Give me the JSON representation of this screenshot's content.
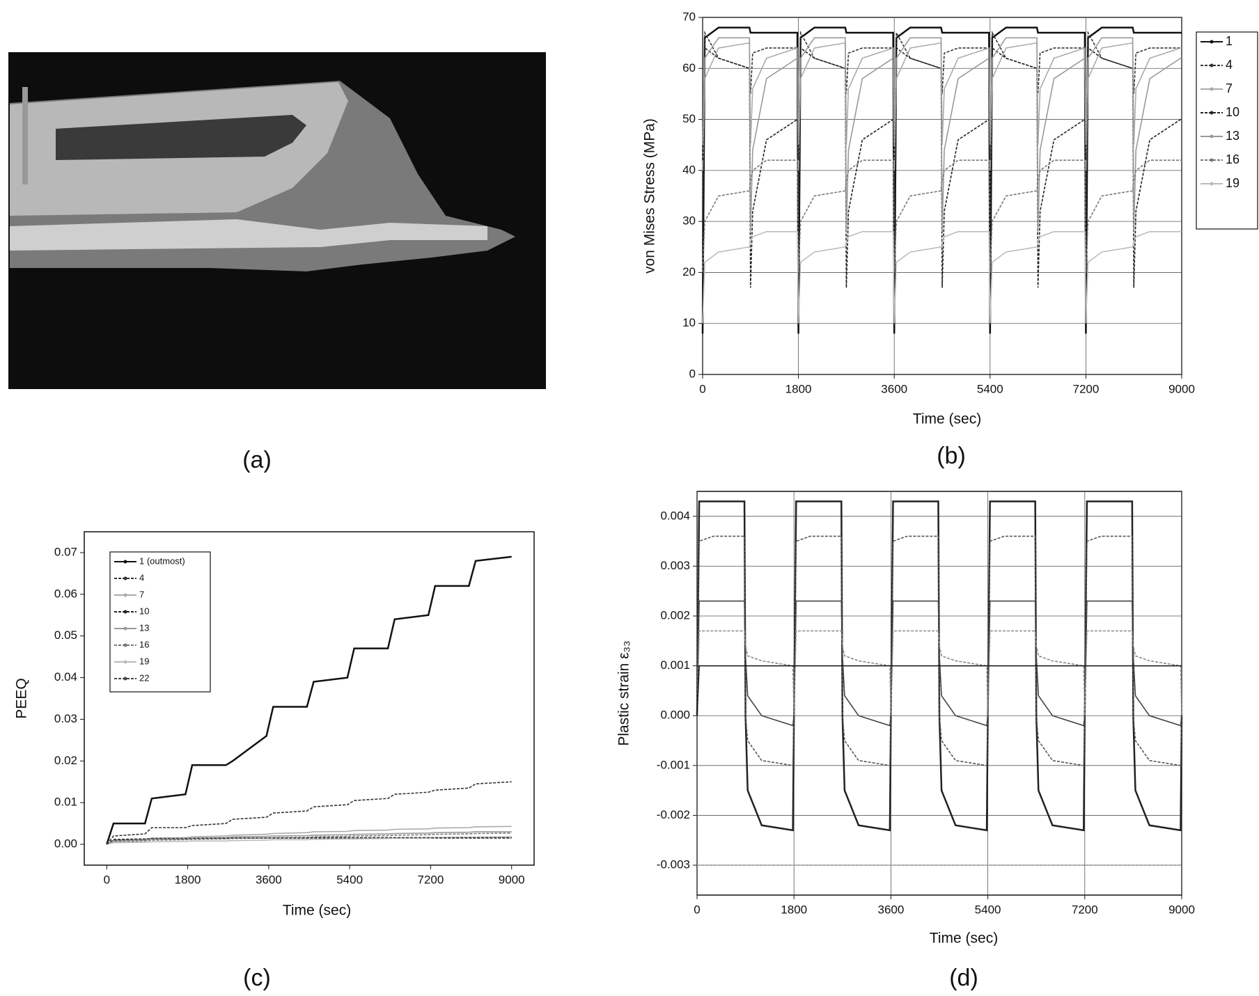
{
  "image_panel": {
    "caption": "(a)"
  },
  "chart_data": [
    {
      "type": "line",
      "caption": "(b)",
      "xlabel": "Time (sec)",
      "ylabel": "von Mises Stress (MPa)",
      "x": [
        0,
        40,
        300,
        880,
        900,
        940,
        1200,
        1780,
        1800,
        1840,
        2100,
        2680,
        2700,
        2740,
        3000,
        3580,
        3600,
        3640,
        3900,
        4480,
        4500,
        4540,
        4800,
        5380,
        5400,
        5440,
        5700,
        6280,
        6300,
        6340,
        6600,
        7180,
        7200,
        7240,
        7500,
        8080,
        8100,
        8140,
        8400,
        8980,
        9000
      ],
      "xlim": [
        0,
        9000
      ],
      "ylim": [
        0,
        70
      ],
      "xticks": [
        0,
        1800,
        3600,
        5400,
        7200,
        9000
      ],
      "yticks": [
        0,
        10,
        20,
        30,
        40,
        50,
        60,
        70
      ],
      "grid": true,
      "legend": "outside right",
      "series": [
        {
          "name": "1",
          "color": "#111111",
          "values": [
            8,
            66,
            68,
            68,
            67,
            67,
            67,
            67,
            8,
            66,
            68,
            68,
            67,
            67,
            67,
            67,
            8,
            66,
            68,
            68,
            67,
            67,
            67,
            67,
            8,
            66,
            68,
            68,
            67,
            67,
            67,
            67,
            8,
            66,
            68,
            68,
            67,
            67,
            67,
            67,
            67
          ]
        },
        {
          "name": "4",
          "color": "#333333",
          "values": [
            30,
            67,
            62,
            60,
            55,
            63,
            64,
            64,
            30,
            67,
            62,
            60,
            55,
            63,
            64,
            64,
            30,
            67,
            62,
            60,
            55,
            63,
            64,
            64,
            30,
            67,
            62,
            60,
            55,
            63,
            64,
            64,
            30,
            67,
            62,
            60,
            55,
            63,
            64,
            64,
            64
          ]
        },
        {
          "name": "7",
          "color": "#aaaaaa",
          "values": [
            40,
            58,
            64,
            65,
            45,
            56,
            62,
            64,
            40,
            58,
            64,
            65,
            45,
            56,
            62,
            64,
            40,
            58,
            64,
            65,
            45,
            56,
            62,
            64,
            40,
            58,
            64,
            65,
            45,
            56,
            62,
            64,
            40,
            58,
            64,
            65,
            45,
            56,
            62,
            64,
            64
          ]
        },
        {
          "name": "10",
          "color": "#222222",
          "values": [
            42,
            64,
            62,
            60,
            17,
            32,
            46,
            50,
            42,
            64,
            62,
            60,
            17,
            32,
            46,
            50,
            42,
            64,
            62,
            60,
            17,
            32,
            46,
            50,
            42,
            64,
            62,
            60,
            17,
            32,
            46,
            50,
            42,
            64,
            62,
            60,
            17,
            32,
            46,
            50,
            50
          ]
        },
        {
          "name": "13",
          "color": "#999999",
          "values": [
            45,
            62,
            66,
            66,
            28,
            44,
            58,
            62,
            45,
            62,
            66,
            66,
            28,
            44,
            58,
            62,
            45,
            62,
            66,
            66,
            28,
            44,
            58,
            62,
            45,
            62,
            66,
            66,
            28,
            44,
            58,
            62,
            45,
            62,
            66,
            66,
            28,
            44,
            58,
            62,
            62
          ]
        },
        {
          "name": "16",
          "color": "#777777",
          "values": [
            20,
            30,
            35,
            36,
            38,
            40,
            42,
            42,
            20,
            30,
            35,
            36,
            38,
            40,
            42,
            42,
            20,
            30,
            35,
            36,
            38,
            40,
            42,
            42,
            20,
            30,
            35,
            36,
            38,
            40,
            42,
            42,
            20,
            30,
            35,
            36,
            38,
            40,
            42,
            42,
            42
          ]
        },
        {
          "name": "19",
          "color": "#bbbbbb",
          "values": [
            10,
            22,
            24,
            25,
            26,
            27,
            28,
            28,
            10,
            22,
            24,
            25,
            26,
            27,
            28,
            28,
            10,
            22,
            24,
            25,
            26,
            27,
            28,
            28,
            10,
            22,
            24,
            25,
            26,
            27,
            28,
            28,
            10,
            22,
            24,
            25,
            26,
            27,
            28,
            28,
            28
          ]
        }
      ]
    },
    {
      "type": "line",
      "caption": "(c)",
      "xlabel": "Time (sec)",
      "ylabel": "PEEQ",
      "x": [
        0,
        150,
        850,
        1000,
        1750,
        1900,
        2650,
        2800,
        3550,
        3700,
        4450,
        4600,
        5350,
        5500,
        6250,
        6400,
        7150,
        7300,
        8050,
        8200,
        9000
      ],
      "xlim": [
        -500,
        9500
      ],
      "ylim": [
        -0.005,
        0.075
      ],
      "xticks": [
        0,
        1800,
        3600,
        5400,
        7200,
        9000
      ],
      "yticks": [
        {
          "value": 0,
          "label": "0.00"
        },
        0.01,
        0.02,
        0.03,
        0.04,
        0.05,
        0.06,
        0.07
      ],
      "grid": false,
      "legend": "upper left",
      "series": [
        {
          "name": "1 (outmost)",
          "color": "#111111",
          "values": [
            0,
            0.005,
            0.005,
            0.011,
            0.012,
            0.019,
            0.019,
            0.02,
            0.026,
            0.033,
            0.033,
            0.039,
            0.04,
            0.047,
            0.047,
            0.054,
            0.055,
            0.062,
            0.062,
            0.068,
            0.069
          ]
        },
        {
          "name": "4",
          "color": "#333333",
          "values": [
            0,
            0.002,
            0.0025,
            0.004,
            0.004,
            0.0045,
            0.005,
            0.006,
            0.0065,
            0.0075,
            0.008,
            0.009,
            0.0095,
            0.0105,
            0.011,
            0.012,
            0.0125,
            0.013,
            0.0135,
            0.0145,
            0.015
          ]
        },
        {
          "name": "7",
          "color": "#aaaaaa",
          "values": [
            0,
            0.001,
            0.0012,
            0.0015,
            0.0016,
            0.0018,
            0.002,
            0.0022,
            0.0024,
            0.0026,
            0.0028,
            0.003,
            0.0031,
            0.0033,
            0.0034,
            0.0036,
            0.0037,
            0.0039,
            0.004,
            0.0042,
            0.0043
          ]
        },
        {
          "name": "10",
          "color": "#222222",
          "values": [
            0,
            0.001,
            0.0012,
            0.0013,
            0.0013,
            0.0014,
            0.0014,
            0.0015,
            0.0015,
            0.0015,
            0.0015,
            0.0015,
            0.0015,
            0.0015,
            0.0015,
            0.0015,
            0.0015,
            0.0015,
            0.0015,
            0.0015,
            0.0015
          ]
        },
        {
          "name": "13",
          "color": "#999999",
          "values": [
            0,
            0.0008,
            0.001,
            0.0012,
            0.0013,
            0.0015,
            0.0016,
            0.0018,
            0.0019,
            0.002,
            0.0021,
            0.0022,
            0.0023,
            0.0024,
            0.0025,
            0.0026,
            0.0027,
            0.0028,
            0.0029,
            0.003,
            0.003
          ]
        },
        {
          "name": "16",
          "color": "#777777",
          "values": [
            0,
            0.0006,
            0.0008,
            0.001,
            0.0011,
            0.0012,
            0.0013,
            0.0014,
            0.0015,
            0.0016,
            0.0017,
            0.0018,
            0.0019,
            0.002,
            0.0021,
            0.0022,
            0.0023,
            0.0024,
            0.0025,
            0.0026,
            0.0027
          ]
        },
        {
          "name": "19",
          "color": "#bbbbbb",
          "values": [
            0,
            0.0004,
            0.0005,
            0.0006,
            0.0007,
            0.0008,
            0.0008,
            0.0009,
            0.001,
            0.0011,
            0.0011,
            0.0012,
            0.0013,
            0.0013,
            0.0014,
            0.0015,
            0.0015,
            0.0016,
            0.0017,
            0.0017,
            0.0018
          ]
        },
        {
          "name": "22",
          "color": "#444444",
          "values": [
            0,
            0.0012,
            0.0013,
            0.0014,
            0.0014,
            0.0014,
            0.0015,
            0.0015,
            0.0015,
            0.0015,
            0.0015,
            0.0016,
            0.0016,
            0.0016,
            0.0016,
            0.0016,
            0.0016,
            0.0016,
            0.0016,
            0.0016,
            0.0016
          ]
        }
      ]
    },
    {
      "type": "line",
      "caption": "(d)",
      "xlabel": "Time (sec)",
      "ylabel": "Plastic strain ε₃₃",
      "x": [
        0,
        40,
        300,
        880,
        900,
        940,
        1200,
        1780,
        1800,
        1840,
        2100,
        2680,
        2700,
        2740,
        3000,
        3580,
        3600,
        3640,
        3900,
        4480,
        4500,
        4540,
        4800,
        5380,
        5400,
        5440,
        5700,
        6280,
        6300,
        6340,
        6600,
        7180,
        7200,
        7240,
        7500,
        8080,
        8100,
        8140,
        8400,
        8980,
        9000
      ],
      "xlim": [
        0,
        9000
      ],
      "ylim": [
        -0.0036,
        0.0045
      ],
      "xticks": [
        0,
        1800,
        3600,
        5400,
        7200,
        9000
      ],
      "yticks": [
        -0.003,
        -0.002,
        -0.001,
        {
          "value": 0,
          "label": "0.000"
        },
        0.001,
        0.002,
        0.003,
        0.004
      ],
      "grid": true,
      "series": [
        {
          "color": "#222222",
          "values": [
            0,
            0.0043,
            0.0043,
            0.0043,
            0,
            -0.0015,
            -0.0022,
            -0.0023,
            0,
            0.0043,
            0.0043,
            0.0043,
            0,
            -0.0015,
            -0.0022,
            -0.0023,
            0,
            0.0043,
            0.0043,
            0.0043,
            0,
            -0.0015,
            -0.0022,
            -0.0023,
            0,
            0.0043,
            0.0043,
            0.0043,
            0,
            -0.0015,
            -0.0022,
            -0.0023,
            0,
            0.0043,
            0.0043,
            0.0043,
            0,
            -0.0015,
            -0.0022,
            -0.0023,
            0
          ]
        },
        {
          "color": "#555555",
          "values": [
            0,
            0.0035,
            0.0036,
            0.0036,
            0,
            -0.0005,
            -0.0009,
            -0.001,
            0,
            0.0035,
            0.0036,
            0.0036,
            0,
            -0.0005,
            -0.0009,
            -0.001,
            0,
            0.0035,
            0.0036,
            0.0036,
            0,
            -0.0005,
            -0.0009,
            -0.001,
            0,
            0.0035,
            0.0036,
            0.0036,
            0,
            -0.0005,
            -0.0009,
            -0.001,
            0,
            0.0035,
            0.0036,
            0.0036,
            0,
            -0.0005,
            -0.0009,
            -0.001,
            0
          ]
        },
        {
          "color": "#444444",
          "values": [
            0,
            0.0023,
            0.0023,
            0.0023,
            0.0012,
            0.0004,
            0,
            -0.0002,
            0,
            0.0023,
            0.0023,
            0.0023,
            0.0012,
            0.0004,
            0,
            -0.0002,
            0,
            0.0023,
            0.0023,
            0.0023,
            0.0012,
            0.0004,
            0,
            -0.0002,
            0,
            0.0023,
            0.0023,
            0.0023,
            0.0012,
            0.0004,
            0,
            -0.0002,
            0,
            0.0023,
            0.0023,
            0.0023,
            0.0012,
            0.0004,
            0,
            -0.0002,
            0
          ]
        },
        {
          "color": "#888888",
          "values": [
            0,
            0.0017,
            0.0017,
            0.0017,
            0.0014,
            0.0012,
            0.0011,
            0.001,
            0,
            0.0017,
            0.0017,
            0.0017,
            0.0014,
            0.0012,
            0.0011,
            0.001,
            0,
            0.0017,
            0.0017,
            0.0017,
            0.0014,
            0.0012,
            0.0011,
            0.001,
            0,
            0.0017,
            0.0017,
            0.0017,
            0.0014,
            0.0012,
            0.0011,
            0.001,
            0,
            0.0017,
            0.0017,
            0.0017,
            0.0014,
            0.0012,
            0.0011,
            0.001,
            0
          ]
        },
        {
          "color": "#111111",
          "values": [
            0,
            0.001,
            0.001,
            0.001,
            0.001,
            0.001,
            0.001,
            0.001,
            0.001,
            0.001,
            0.001,
            0.001,
            0.001,
            0.001,
            0.001,
            0.001,
            0.001,
            0.001,
            0.001,
            0.001,
            0.001,
            0.001,
            0.001,
            0.001,
            0.001,
            0.001,
            0.001,
            0.001,
            0.001,
            0.001,
            0.001,
            0.001,
            0.001,
            0.001,
            0.001,
            0.001,
            0.001,
            0.001,
            0.001,
            0.001,
            0.001
          ]
        },
        {
          "color": "#999999",
          "values": [
            -0.003,
            -0.003,
            -0.003,
            -0.003,
            -0.003,
            -0.003,
            -0.003,
            -0.003,
            -0.003,
            -0.003,
            -0.003,
            -0.003,
            -0.003,
            -0.003,
            -0.003,
            -0.003,
            -0.003,
            -0.003,
            -0.003,
            -0.003,
            -0.003,
            -0.003,
            -0.003,
            -0.003,
            -0.003,
            -0.003,
            -0.003,
            -0.003,
            -0.003,
            -0.003,
            -0.003,
            -0.003,
            -0.003,
            -0.003,
            -0.003,
            -0.003,
            -0.003,
            -0.003,
            -0.003,
            -0.003,
            -0.003
          ]
        }
      ]
    }
  ]
}
